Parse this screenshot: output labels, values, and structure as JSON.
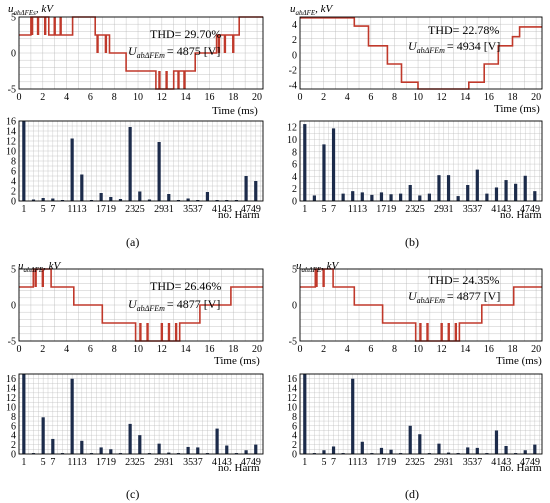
{
  "colors": {
    "waveform": "#c0392b",
    "bars": "#1c2b4a",
    "grid": "#b8b8b8",
    "axis": "#000000"
  },
  "common": {
    "time_axis_label": "Time (ms)",
    "harm_axis_label": "no. Harm",
    "time_ticks": [
      "0",
      "2",
      "4",
      "6",
      "8",
      "10",
      "12",
      "14",
      "16",
      "18",
      "20"
    ],
    "harm_ticks": [
      "1",
      "5",
      "7",
      "1113",
      "1719",
      "23",
      "25",
      "29",
      "31",
      "35",
      "37",
      "4143",
      "4749"
    ],
    "harm_ticks_c": [
      "1",
      "5",
      "7",
      "1113",
      "1719",
      "23",
      "25",
      "29",
      "31",
      "35",
      "37",
      "4143",
      "4749"
    ]
  },
  "panels": [
    {
      "caption": "(a)",
      "ylabel_main": "u",
      "ylabel_sub": "abΔFEs",
      "ylabel_unit": ", kV",
      "thd_text": "THD= 29.70%",
      "um_main": "U",
      "um_sub": "abΔFEm",
      "um_value": "= 4875 [V]"
    },
    {
      "caption": "(b)",
      "ylabel_main": "u",
      "ylabel_sub": "abΔFE",
      "ylabel_unit": ", kV",
      "thd_text": "THD= 22.78%",
      "um_main": "U",
      "um_sub": "abΔFEm",
      "um_value": "= 4934 [V]"
    },
    {
      "caption": "(c)",
      "ylabel_main": "u",
      "ylabel_sub": "abΔFE",
      "ylabel_unit": ", kV",
      "thd_text": "THD= 26.46%",
      "um_main": "U",
      "um_sub": "abΔFEm",
      "um_value": "= 4877 [V]"
    },
    {
      "caption": "(d)",
      "ylabel_main": "u",
      "ylabel_sub": "abΔFE",
      "ylabel_unit": ", kV",
      "thd_text": "THD= 24.35%",
      "um_main": "U",
      "um_sub": "abΔFEm",
      "um_value": "= 4877 [V]"
    }
  ],
  "chart_data": [
    {
      "panel": "a-waveform",
      "type": "line",
      "xlabel": "Time (ms)",
      "xlim": [
        0,
        20.5
      ],
      "ylim": [
        -5,
        5
      ],
      "yticks": [
        -5,
        0,
        5
      ],
      "grid": true,
      "series": [
        {
          "x": [
            0,
            1.0,
            1.0,
            2.5,
            2.5,
            4.5,
            4.5,
            6.4,
            6.4,
            7.6,
            7.6,
            9.0,
            9.0,
            11.5,
            11.5,
            13.0,
            13.0,
            14.8,
            14.8,
            16.6,
            16.6,
            18.5,
            18.5,
            20.5
          ],
          "values": [
            2.5,
            2.5,
            5,
            5,
            2.5,
            2.5,
            5,
            5,
            2.5,
            2.5,
            0,
            0,
            -2.5,
            -2.5,
            -5,
            -5,
            -2.5,
            -2.5,
            0,
            0,
            2.5,
            2.5,
            5,
            5
          ]
        }
      ]
    },
    {
      "panel": "a-spectrum",
      "type": "bar",
      "xlabel": "no. Harm",
      "ylim": [
        0,
        16
      ],
      "yticks": [
        0,
        2,
        4,
        6,
        8,
        10,
        12,
        14,
        16
      ],
      "grid": true,
      "x": [
        1,
        3,
        5,
        7,
        9,
        11,
        13,
        15,
        17,
        19,
        21,
        23,
        25,
        27,
        29,
        31,
        33,
        35,
        37,
        39,
        41,
        43,
        45,
        47,
        49
      ],
      "values": [
        16,
        0.3,
        0.6,
        0.5,
        0.2,
        12.5,
        5.3,
        0.2,
        1.6,
        0.8,
        0.4,
        14.8,
        1.9,
        0.3,
        11.8,
        1.4,
        0.2,
        0.5,
        0.2,
        1.8,
        0.2,
        0.2,
        0.2,
        5.0,
        4.0
      ]
    },
    {
      "panel": "b-waveform",
      "type": "line",
      "xlabel": "Time (ms)",
      "xlim": [
        0,
        20.5
      ],
      "ylim": [
        -4.5,
        5
      ],
      "yticks": [
        -4,
        -2,
        0,
        2,
        4
      ],
      "grid": true,
      "series": [
        {
          "x": [
            0,
            4.6,
            4.6,
            5.8,
            5.8,
            7.4,
            7.4,
            8.6,
            8.6,
            10.0,
            10.0,
            14.3,
            14.3,
            15.6,
            15.6,
            16.8,
            16.8,
            18.0,
            18.0,
            18.6,
            18.6,
            20.5
          ],
          "values": [
            4.9,
            4.9,
            3.8,
            3.8,
            1.2,
            1.2,
            -1.2,
            -1.2,
            -3.6,
            -3.6,
            -4.5,
            -4.5,
            -3.6,
            -3.6,
            -1.2,
            -1.2,
            1.2,
            1.2,
            2.4,
            2.4,
            3.7,
            3.7
          ]
        }
      ]
    },
    {
      "panel": "b-spectrum",
      "type": "bar",
      "xlabel": "no. Harm",
      "ylim": [
        0,
        13
      ],
      "yticks": [
        0,
        2,
        4,
        6,
        8,
        10,
        12
      ],
      "grid": true,
      "x": [
        1,
        3,
        5,
        7,
        9,
        11,
        13,
        15,
        17,
        19,
        21,
        23,
        25,
        27,
        29,
        31,
        33,
        35,
        37,
        39,
        41,
        43,
        45,
        47,
        49
      ],
      "values": [
        12.5,
        0.9,
        9.2,
        11.8,
        1.2,
        1.6,
        1.4,
        1.0,
        1.4,
        1.1,
        1.2,
        2.6,
        0.9,
        1.2,
        4.2,
        4.2,
        0.8,
        2.6,
        5.1,
        1.2,
        2.2,
        3.4,
        2.8,
        4.1,
        1.6
      ]
    },
    {
      "panel": "c-waveform",
      "type": "line",
      "xlabel": "Time (ms)",
      "xlim": [
        0,
        20.5
      ],
      "ylim": [
        -5,
        5
      ],
      "yticks": [
        -5,
        0,
        5
      ],
      "grid": true,
      "series": [
        {
          "x": [
            0,
            1.2,
            1.2,
            2.7,
            2.7,
            4.6,
            4.6,
            7.0,
            7.0,
            9.8,
            9.8,
            13.5,
            13.5,
            15.2,
            15.2,
            17.8,
            17.8,
            20.5
          ],
          "values": [
            2.5,
            2.5,
            5,
            5,
            2.5,
            2.5,
            0,
            0,
            -2.5,
            -2.5,
            -5,
            -5,
            -2.5,
            -2.5,
            0,
            0,
            2.5,
            2.5
          ]
        }
      ]
    },
    {
      "panel": "c-spectrum",
      "type": "bar",
      "xlabel": "no. Harm",
      "ylim": [
        0,
        17
      ],
      "yticks": [
        0,
        2,
        4,
        6,
        8,
        10,
        12,
        14,
        16
      ],
      "grid": true,
      "x": [
        1,
        3,
        5,
        7,
        9,
        11,
        13,
        15,
        17,
        19,
        21,
        23,
        25,
        27,
        29,
        31,
        33,
        35,
        37,
        39,
        41,
        43,
        45,
        47,
        49
      ],
      "values": [
        17,
        0.2,
        7.8,
        3.2,
        0.2,
        16,
        2.8,
        0.2,
        1.4,
        1.0,
        0.2,
        6.4,
        4.0,
        0.2,
        2.2,
        0.3,
        0.2,
        1.5,
        1.4,
        0.2,
        5.4,
        1.8,
        0.2,
        0.8,
        2.0
      ]
    },
    {
      "panel": "d-waveform",
      "type": "line",
      "xlabel": "Time (ms)",
      "xlim": [
        0,
        20.5
      ],
      "ylim": [
        -5,
        5
      ],
      "yticks": [
        -5,
        0,
        5
      ],
      "grid": true,
      "series": [
        {
          "x": [
            0,
            1.3,
            1.3,
            2.8,
            2.8,
            4.6,
            4.6,
            7.0,
            7.0,
            9.8,
            9.8,
            13.5,
            13.5,
            15.4,
            15.4,
            18.1,
            18.1,
            20.5
          ],
          "values": [
            2.5,
            2.5,
            5,
            5,
            2.5,
            2.5,
            0,
            0,
            -2.5,
            -2.5,
            -5,
            -5,
            -2.5,
            -2.5,
            0,
            0,
            2.5,
            2.5
          ]
        }
      ]
    },
    {
      "panel": "d-spectrum",
      "type": "bar",
      "xlabel": "no. Harm",
      "ylim": [
        0,
        17
      ],
      "yticks": [
        0,
        2,
        4,
        6,
        8,
        10,
        12,
        14,
        16
      ],
      "grid": true,
      "x": [
        1,
        3,
        5,
        7,
        9,
        11,
        13,
        15,
        17,
        19,
        21,
        23,
        25,
        27,
        29,
        31,
        33,
        35,
        37,
        39,
        41,
        43,
        45,
        47,
        49
      ],
      "values": [
        17,
        0.2,
        0.8,
        1.6,
        0.2,
        16,
        2.6,
        0.2,
        1.3,
        0.9,
        0.2,
        6.0,
        4.2,
        0.2,
        2.2,
        0.3,
        0.2,
        1.4,
        1.3,
        0.2,
        5.0,
        1.7,
        0.2,
        0.8,
        2.0
      ]
    }
  ]
}
